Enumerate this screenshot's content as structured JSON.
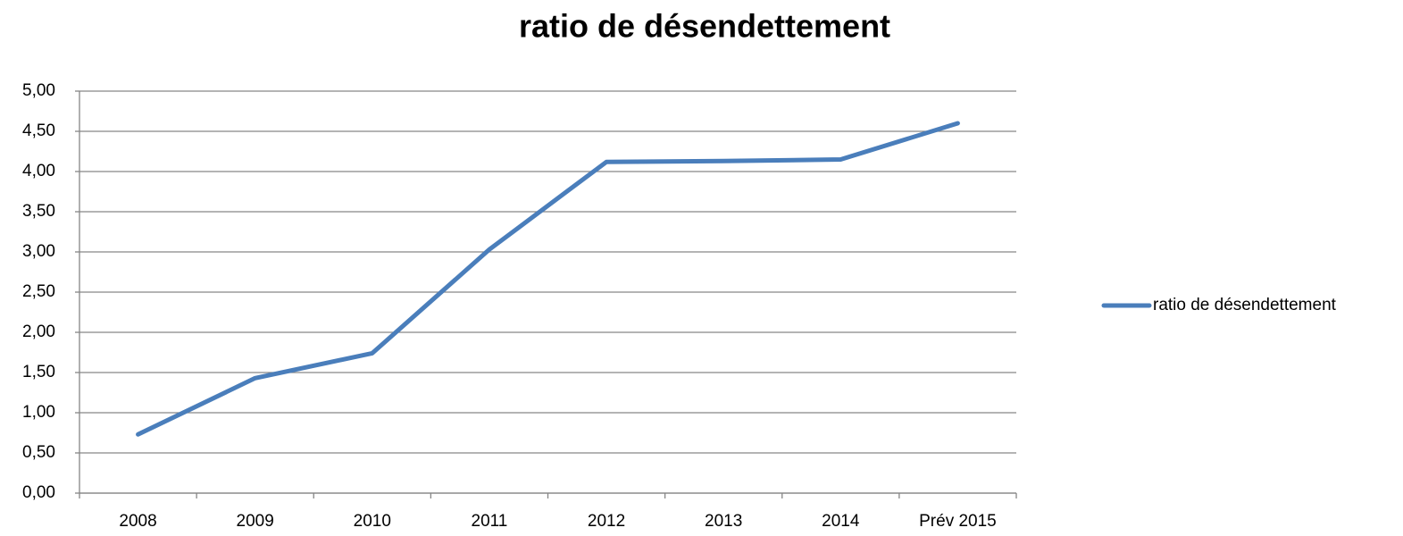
{
  "chart_data": {
    "type": "line",
    "title": "ratio de désendettement",
    "categories": [
      "2008",
      "2009",
      "2010",
      "2011",
      "2012",
      "2013",
      "2014",
      "Prév 2015"
    ],
    "series": [
      {
        "name": "ratio de désendettement",
        "color": "#4a7ebb",
        "values": [
          0.73,
          1.43,
          1.74,
          3.03,
          4.12,
          4.13,
          4.15,
          4.6
        ]
      }
    ],
    "ylim": [
      0,
      5
    ],
    "yticks": [
      {
        "value": 0,
        "label": "0,00"
      },
      {
        "value": 0.5,
        "label": "0,50"
      },
      {
        "value": 1,
        "label": "1,00"
      },
      {
        "value": 1.5,
        "label": "1,50"
      },
      {
        "value": 2,
        "label": "2,00"
      },
      {
        "value": 2.5,
        "label": "2,50"
      },
      {
        "value": 3,
        "label": "3,00"
      },
      {
        "value": 3.5,
        "label": "3,50"
      },
      {
        "value": 4,
        "label": "4,00"
      },
      {
        "value": 4.5,
        "label": "4,50"
      },
      {
        "value": 5,
        "label": "5,00"
      }
    ],
    "grid": true,
    "legend": "right"
  }
}
